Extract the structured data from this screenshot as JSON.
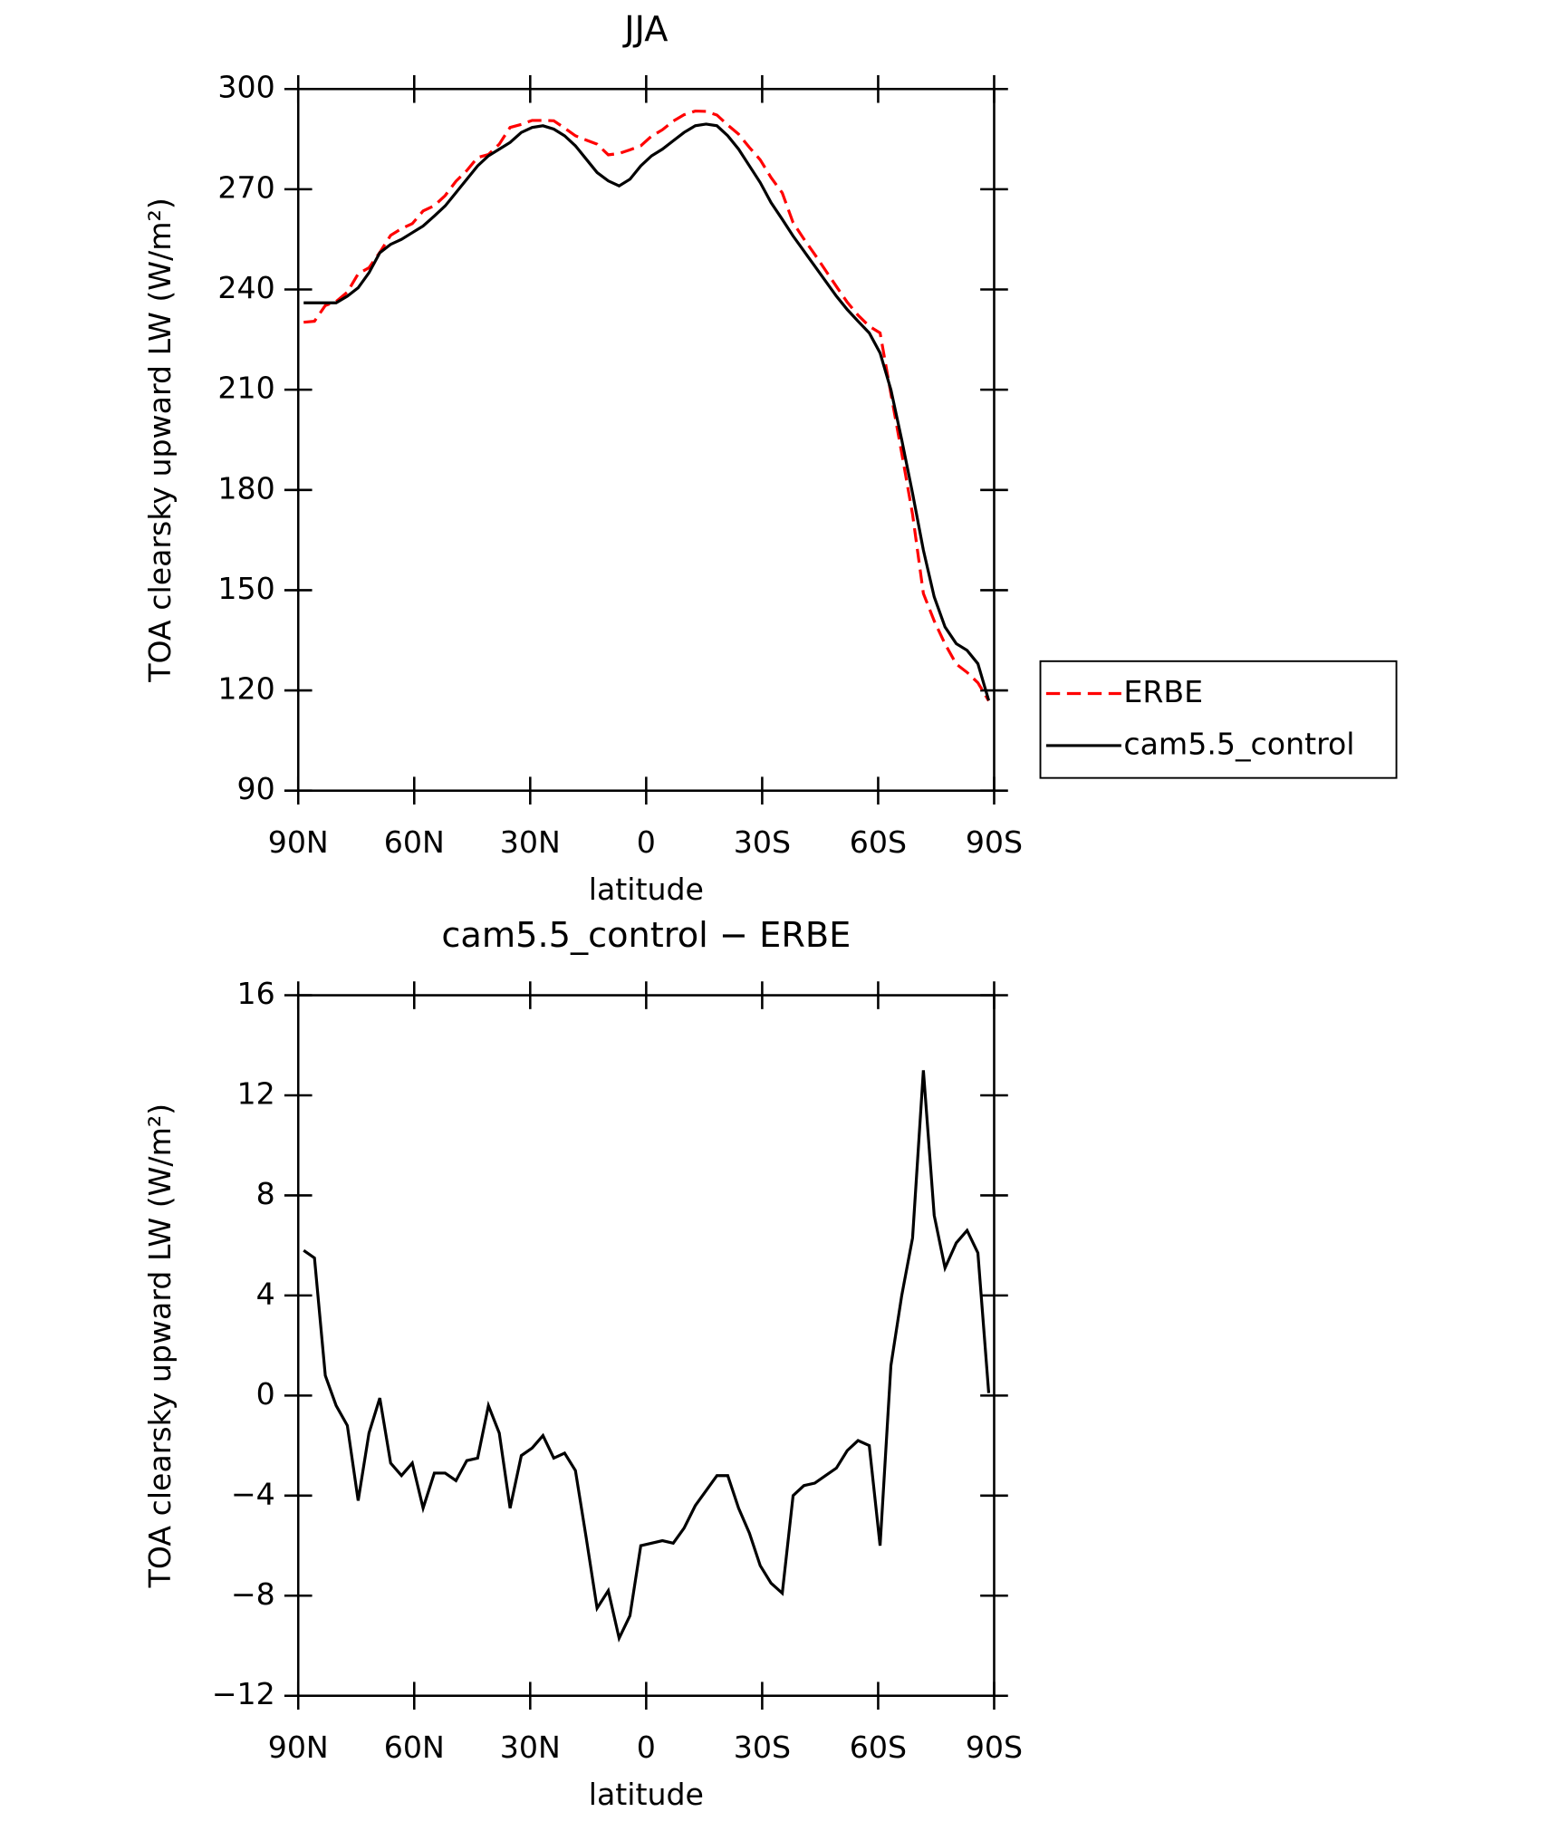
{
  "chart_data": [
    {
      "type": "line",
      "title": "JJA",
      "xlabel": "latitude",
      "ylabel": "TOA clearsky upward LW (W/m²)",
      "x": [
        88.6,
        85.8,
        83.0,
        80.2,
        77.3,
        74.5,
        71.7,
        68.9,
        66.1,
        63.3,
        60.5,
        57.7,
        54.8,
        52.0,
        49.2,
        46.4,
        43.6,
        40.8,
        38.0,
        35.2,
        32.3,
        29.5,
        26.7,
        23.9,
        21.1,
        18.3,
        15.5,
        12.7,
        9.8,
        7.0,
        4.2,
        1.4,
        -1.4,
        -4.2,
        -7.0,
        -9.8,
        -12.7,
        -15.5,
        -18.3,
        -21.1,
        -23.9,
        -26.7,
        -29.5,
        -32.3,
        -35.2,
        -38.0,
        -40.8,
        -43.6,
        -46.4,
        -49.2,
        -52.0,
        -54.8,
        -57.7,
        -60.5,
        -63.3,
        -66.1,
        -68.9,
        -71.7,
        -74.5,
        -77.3,
        -80.2,
        -83.0,
        -85.8,
        -88.6
      ],
      "series": [
        {
          "name": "ERBE",
          "color": "#ff0000",
          "dash": true,
          "values": [
            230.2,
            230.5,
            235.2,
            236.4,
            239.2,
            244.7,
            246.5,
            251.1,
            256.2,
            258.2,
            259.7,
            263.5,
            265.1,
            268.1,
            272.4,
            275.6,
            279.5,
            280.4,
            283.5,
            288.5,
            289.4,
            290.6,
            290.6,
            290.5,
            288.3,
            286,
            284.7,
            283.5,
            280.3,
            280.7,
            281.8,
            283,
            285.9,
            287.8,
            290.4,
            292.3,
            293.4,
            293.3,
            292.2,
            289.2,
            286.5,
            282.5,
            278.8,
            273.5,
            268.9,
            260,
            255.1,
            250.5,
            245.7,
            240.9,
            236.2,
            232.3,
            229,
            227,
            208.8,
            191,
            172.7,
            149,
            140.8,
            133.9,
            127.9,
            125.4,
            122.3,
            116.9
          ]
        },
        {
          "name": "cam5.5_control",
          "color": "#000000",
          "dash": false,
          "values": [
            236,
            236,
            236,
            236,
            238,
            240.5,
            245,
            251,
            253.5,
            255,
            257,
            259,
            262,
            265,
            269,
            273,
            277,
            280,
            282,
            284,
            287,
            288.5,
            289,
            288,
            286,
            283,
            279,
            275,
            272.5,
            271,
            273,
            277,
            280,
            282,
            284.5,
            287,
            289,
            289.5,
            289,
            286,
            282,
            277,
            272,
            266,
            261,
            256,
            251.5,
            247,
            242.5,
            238,
            234,
            230.5,
            227,
            221,
            210,
            195,
            179,
            162,
            148,
            139,
            134,
            132,
            128,
            117
          ]
        }
      ],
      "xlim": [
        90,
        -90
      ],
      "xticks": [
        {
          "value": 90,
          "label": "90N"
        },
        {
          "value": 60,
          "label": "60N"
        },
        {
          "value": 30,
          "label": "30N"
        },
        0,
        {
          "value": -30,
          "label": "30S"
        },
        {
          "value": -60,
          "label": "60S"
        },
        {
          "value": -90,
          "label": "90S"
        }
      ],
      "ylim": [
        90,
        300
      ],
      "yticks": [
        90,
        120,
        150,
        180,
        210,
        240,
        270,
        300
      ],
      "legend": "outside right"
    },
    {
      "type": "line",
      "title": "cam5.5_control − ERBE",
      "xlabel": "latitude",
      "ylabel": "TOA clearsky upward LW (W/m²)",
      "x": [
        88.6,
        85.8,
        83.0,
        80.2,
        77.3,
        74.5,
        71.7,
        68.9,
        66.1,
        63.3,
        60.5,
        57.7,
        54.8,
        52.0,
        49.2,
        46.4,
        43.6,
        40.8,
        38.0,
        35.2,
        32.3,
        29.5,
        26.7,
        23.9,
        21.1,
        18.3,
        15.5,
        12.7,
        9.8,
        7.0,
        4.2,
        1.4,
        -1.4,
        -4.2,
        -7.0,
        -9.8,
        -12.7,
        -15.5,
        -18.3,
        -21.1,
        -23.9,
        -26.7,
        -29.5,
        -32.3,
        -35.2,
        -38.0,
        -40.8,
        -43.6,
        -46.4,
        -49.2,
        -52.0,
        -54.8,
        -57.7,
        -60.5,
        -63.3,
        -66.1,
        -68.9,
        -71.7,
        -74.5,
        -77.3,
        -80.2,
        -83.0,
        -85.8,
        -88.6
      ],
      "series": [
        {
          "color": "#000000",
          "dash": false,
          "values": [
            5.8,
            5.5,
            0.8,
            -0.4,
            -1.2,
            -4.2,
            -1.5,
            -0.1,
            -2.7,
            -3.2,
            -2.7,
            -4.5,
            -3.1,
            -3.1,
            -3.4,
            -2.6,
            -2.5,
            -0.4,
            -1.5,
            -4.5,
            -2.4,
            -2.1,
            -1.6,
            -2.5,
            -2.3,
            -3.0,
            -5.7,
            -8.5,
            -7.8,
            -9.7,
            -8.8,
            -6.0,
            -5.9,
            -5.8,
            -5.9,
            -5.3,
            -4.4,
            -3.8,
            -3.2,
            -3.2,
            -4.5,
            -5.5,
            -6.8,
            -7.5,
            -7.9,
            -4.0,
            -3.6,
            -3.5,
            -3.2,
            -2.9,
            -2.2,
            -1.8,
            -2.0,
            -6.0,
            1.2,
            4.0,
            6.3,
            13.0,
            7.2,
            5.1,
            6.1,
            6.6,
            5.7,
            0.1
          ]
        }
      ],
      "xlim": [
        90,
        -90
      ],
      "xticks": [
        {
          "value": 90,
          "label": "90N"
        },
        {
          "value": 60,
          "label": "60N"
        },
        {
          "value": 30,
          "label": "30N"
        },
        0,
        {
          "value": -30,
          "label": "30S"
        },
        {
          "value": -60,
          "label": "60S"
        },
        {
          "value": -90,
          "label": "90S"
        }
      ],
      "ylim": [
        -12,
        16
      ],
      "yticks": [
        {
          "value": -12,
          "label": "−12"
        },
        {
          "value": -8,
          "label": "−8"
        },
        {
          "value": -4,
          "label": "−4"
        },
        0,
        4,
        8,
        12,
        16
      ]
    }
  ]
}
